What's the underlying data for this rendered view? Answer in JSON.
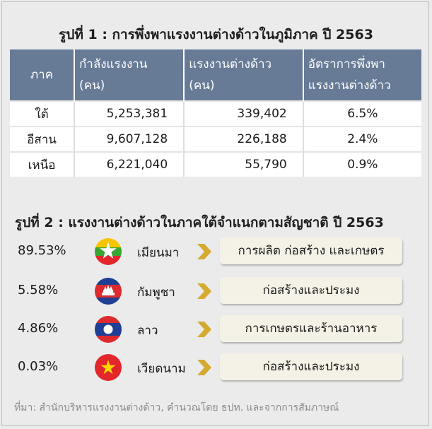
{
  "chart_data": [
    {
      "type": "table",
      "title": "รูปที่ 1 : การพึ่งพาแรงงานต่างด้าวในภูมิภาค ปี 2563",
      "columns": [
        "ภาค",
        "กำลังแรงงาน (คน)",
        "แรงงานต่างด้าว (คน)",
        "อัตราการพึ่งพาแรงงานต่างด้าว"
      ],
      "header": {
        "region": "ภาค",
        "labor_line1": "กำลังแรงงาน",
        "labor_line2": "(คน)",
        "foreign_line1": "แรงงานต่างด้าว",
        "foreign_line2": "(คน)",
        "rate_line1": "อัตราการพึ่งพา",
        "rate_line2": "แรงงานต่างด้าว"
      },
      "rows": [
        {
          "region": "ใต้",
          "labor_force": "5,253,381",
          "foreign_labor": "339,402",
          "dependency_rate": "6.5%"
        },
        {
          "region": "อีสาน",
          "labor_force": "9,607,128",
          "foreign_labor": "226,188",
          "dependency_rate": "2.4%"
        },
        {
          "region": "เหนือ",
          "labor_force": "6,221,040",
          "foreign_labor": "55,790",
          "dependency_rate": "0.9%"
        }
      ]
    },
    {
      "type": "table",
      "title": "รูปที่ 2 : แรงงานต่างด้าวในภาคใต้จำแนกตามสัญชาติ ปี 2563",
      "rows": [
        {
          "share": "89.53%",
          "country": "เมียนมา",
          "flag": "myanmar-flag",
          "sectors": "การผลิต ก่อสร้าง และเกษตร"
        },
        {
          "share": "5.58%",
          "country": "กัมพูชา",
          "flag": "cambodia-flag",
          "sectors": "ก่อสร้างและประมง"
        },
        {
          "share": "4.86%",
          "country": "ลาว",
          "flag": "laos-flag",
          "sectors": "การเกษตรและร้านอาหาร"
        },
        {
          "share": "0.03%",
          "country": "เวียดนาม",
          "flag": "vietnam-flag",
          "sectors": "ก่อสร้างและประมง"
        }
      ]
    }
  ],
  "source": "ที่มา: สำนักบริหารแรงงานต่างด้าว, คำนวณโดย ธปท. และจากการสัมภาษณ์",
  "colors": {
    "header_bg": "#687b96",
    "background": "#ebebeb",
    "arrow": "#d4aa2f",
    "box_bg": "#f4f1e6"
  }
}
